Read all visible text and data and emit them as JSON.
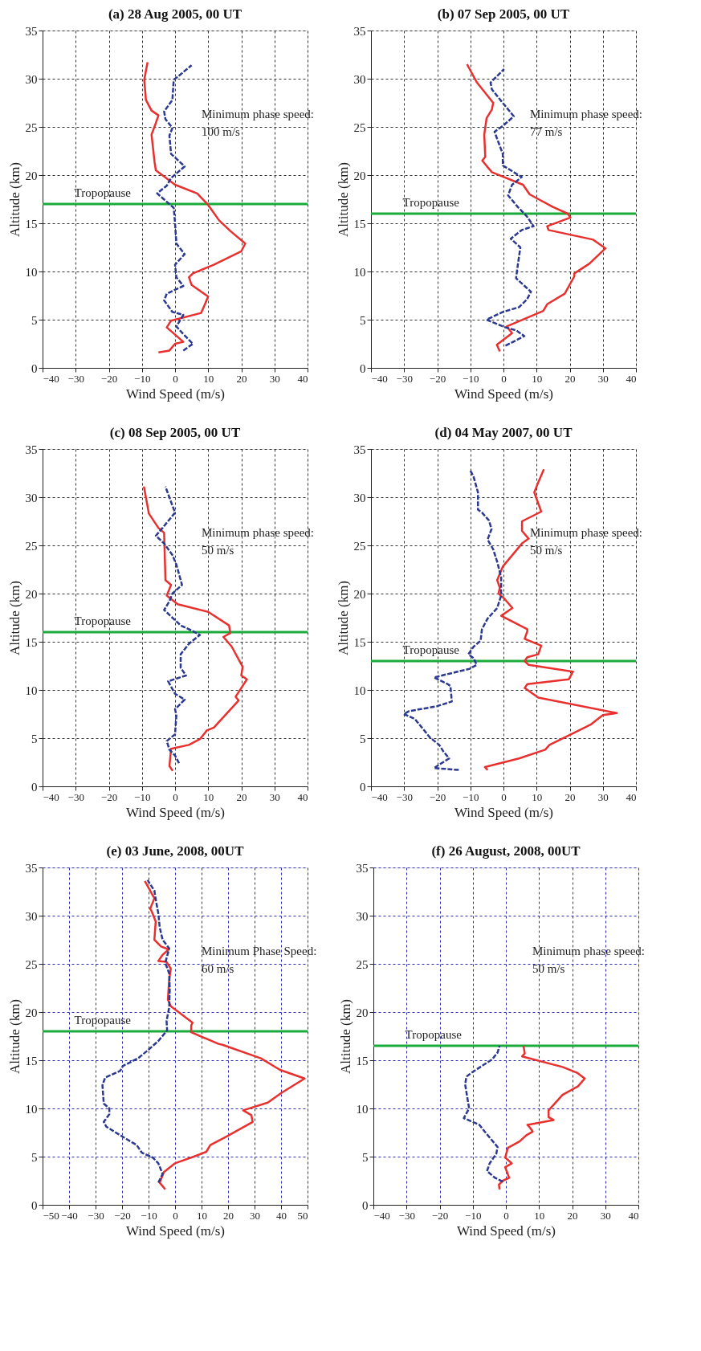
{
  "chart_data": [
    {
      "type": "line",
      "title": "(a) 28 Aug 2005, 00 UT",
      "xlabel": "Wind Speed (m/s)",
      "ylabel": "Altitude (km)",
      "xlim": [
        -40,
        40
      ],
      "xticks": [
        -40,
        -30,
        -20,
        -10,
        0,
        10,
        20,
        30,
        40
      ],
      "ylim": [
        0,
        35
      ],
      "yticks": [
        0,
        5,
        10,
        15,
        20,
        25,
        30,
        35
      ],
      "grid": true,
      "series": [
        {
          "color": "#e8312f",
          "line_style": "solid",
          "x": [
            -5,
            -1.7,
            0,
            2.5,
            -2.5,
            -1.2,
            7.9,
            10,
            5,
            4.2,
            5.4,
            11.7,
            20,
            21.2,
            16.7,
            13.3,
            10,
            6.7,
            0,
            -5.8,
            -6.2,
            -7.1,
            -5.8,
            -5,
            -7.1,
            -8.8,
            -9.3,
            -8.3
          ],
          "values": [
            1.6,
            1.8,
            2.5,
            2.7,
            4.2,
            4.9,
            5.7,
            7.4,
            8.6,
            9.4,
            9.8,
            10.7,
            12.1,
            12.9,
            14.2,
            15.3,
            16.9,
            18.1,
            19,
            20.5,
            21.4,
            24.2,
            25.4,
            26.2,
            26.7,
            27.8,
            29.9,
            31.7
          ]
        },
        {
          "color": "#2b3990",
          "line_style": "dashed",
          "x": [
            2.5,
            5.4,
            2.5,
            0.4,
            2.5,
            -0.8,
            -3.3,
            -2.5,
            2.5,
            0.4,
            0,
            2.9,
            0.4,
            0,
            -0.4,
            -5.4,
            -2.5,
            -1.2,
            2.9,
            -1.2,
            -1.7,
            -0.8,
            -2.9,
            -3.3,
            -0.8,
            -0.4,
            0.8,
            5
          ],
          "values": [
            1.8,
            2.5,
            3.5,
            4.3,
            5.5,
            5.8,
            7,
            7.7,
            8.5,
            9.4,
            10.7,
            11.8,
            12.9,
            15,
            16.6,
            18.1,
            18.9,
            19.7,
            20.9,
            22.2,
            24.1,
            24.9,
            25.8,
            26.6,
            27.8,
            29.9,
            30.2,
            31.4
          ]
        }
      ],
      "ref_lines": [
        {
          "axis": "y",
          "value": 17,
          "label": "Tropopause",
          "color": "#1aab3b"
        }
      ],
      "annotations": [
        "Minimum phase speed:\n100 m/s"
      ]
    },
    {
      "type": "line",
      "title": "(b) 07 Sep 2005, 00 UT",
      "xlabel": "Wind Speed (m/s)",
      "ylabel": "Altitude (km)",
      "xlim": [
        -40,
        40
      ],
      "xticks": [
        -40,
        -30,
        -20,
        -10,
        0,
        10,
        20,
        30,
        40
      ],
      "ylim": [
        0,
        35
      ],
      "yticks": [
        0,
        5,
        10,
        15,
        20,
        25,
        30,
        35
      ],
      "grid": true,
      "series": [
        {
          "color": "#e8312f",
          "line_style": "solid",
          "x": [
            -1.1,
            -2,
            2.6,
            1,
            12,
            13.2,
            18.5,
            21.4,
            21.4,
            25.9,
            30.8,
            27.1,
            13.6,
            13.2,
            20.2,
            19.4,
            14.9,
            7.9,
            5.9,
            -3.5,
            -6.4,
            -5.5,
            -5.8,
            -5.1,
            -3.5,
            -3.1,
            -8,
            -11
          ],
          "values": [
            1.7,
            2.4,
            3.6,
            4.3,
            5.9,
            6.6,
            7.7,
            9.5,
            9.8,
            10.8,
            12.4,
            13.3,
            14.3,
            14.7,
            15.6,
            16,
            16.7,
            18,
            19,
            20.3,
            21.5,
            21.9,
            24.2,
            25.9,
            26.8,
            27.5,
            29.6,
            31.5
          ]
        },
        {
          "color": "#2b3990",
          "line_style": "dashed",
          "x": [
            0.6,
            6.3,
            3.8,
            0.6,
            -5.1,
            -3.9,
            -0.2,
            4.7,
            7.1,
            8.3,
            3.8,
            4.3,
            5.1,
            2.2,
            5.5,
            9.1,
            7.1,
            4.3,
            1.4,
            2.6,
            5.5,
            -0.2,
            -0.2,
            -2.7,
            -0.2,
            3.1,
            -0.7,
            -3.5,
            -3.9,
            0.2
          ],
          "values": [
            2.3,
            3.3,
            3.9,
            4.2,
            5,
            5.2,
            5.8,
            6.3,
            7.1,
            7.9,
            9.3,
            10.6,
            12.5,
            13.4,
            14.3,
            14.7,
            15.7,
            16.7,
            17.9,
            19,
            19.8,
            21,
            22.2,
            24.5,
            25.1,
            26.1,
            27.7,
            28.9,
            29.6,
            31
          ]
        }
      ],
      "ref_lines": [
        {
          "axis": "y",
          "value": 16,
          "label": "Tropopause",
          "color": "#1aab3b"
        }
      ],
      "annotations": [
        "Minimum phase speed:\n77 m/s"
      ]
    },
    {
      "type": "line",
      "title": "(c) 08 Sep 2005, 00 UT",
      "xlabel": "Wind Speed (m/s)",
      "ylabel": "Altitude (km)",
      "xlim": [
        -40,
        40
      ],
      "xticks": [
        -40,
        -30,
        -20,
        -10,
        0,
        10,
        20,
        30,
        40
      ],
      "ylim": [
        0,
        35
      ],
      "yticks": [
        0,
        5,
        10,
        15,
        20,
        25,
        30,
        35
      ],
      "grid": true,
      "series": [
        {
          "color": "#e8312f",
          "line_style": "solid",
          "x": [
            -0.7,
            -1.7,
            -1.2,
            4.2,
            7.5,
            9.6,
            11.7,
            19.2,
            18.3,
            21.7,
            20,
            20.4,
            17.1,
            14.6,
            16.7,
            16.3,
            10,
            0.8,
            -2.5,
            -1.2,
            -2.9,
            -3.3,
            -5,
            -7.9,
            -9.4
          ],
          "values": [
            1.6,
            2.1,
            3.9,
            4.3,
            4.9,
            5.8,
            6.1,
            8.9,
            9.3,
            11.1,
            11.5,
            12.4,
            14.5,
            15.5,
            15.9,
            16.7,
            18.1,
            18.9,
            19.8,
            20.9,
            21.4,
            26.3,
            26.8,
            28.3,
            31.1
          ]
        },
        {
          "color": "#2b3990",
          "line_style": "dashed",
          "x": [
            1.2,
            0,
            -1.7,
            -2.5,
            0,
            0.4,
            0,
            2.9,
            0,
            -2.1,
            3.3,
            1.7,
            1.7,
            4.2,
            7.5,
            5.4,
            1.7,
            -3.3,
            -1.7,
            -0.8,
            2.1,
            0.4,
            -0.8,
            -3.3,
            -5.8,
            -3.8,
            0,
            -1.2,
            -2.9
          ],
          "values": [
            2.4,
            3.2,
            3.8,
            4.7,
            5.4,
            7.4,
            8,
            9,
            9.6,
            10.9,
            11.5,
            12.3,
            13.7,
            14.8,
            15.7,
            16.1,
            16.7,
            18.3,
            19.2,
            20,
            20.9,
            23,
            24,
            25.2,
            26,
            26.8,
            28.4,
            29.5,
            31.1
          ]
        }
      ],
      "ref_lines": [
        {
          "axis": "y",
          "value": 16,
          "label": "Tropopause",
          "color": "#1aab3b"
        }
      ],
      "annotations": [
        "Minimum phase speed:\n50 m/s"
      ]
    },
    {
      "type": "line",
      "title": "(d) 04 May 2007, 00 UT",
      "xlabel": "Wind Speed (m/s)",
      "ylabel": "Altitude (km)",
      "xlim": [
        -40,
        40
      ],
      "xticks": [
        -40,
        -30,
        -20,
        -10,
        0,
        10,
        20,
        30,
        40
      ],
      "ylim": [
        0,
        35
      ],
      "yticks": [
        0,
        5,
        10,
        15,
        20,
        25,
        30,
        35
      ],
      "grid": true,
      "series": [
        {
          "color": "#e8312f",
          "line_style": "solid",
          "x": [
            -4.8,
            -5.6,
            4.7,
            12.6,
            13.9,
            23.4,
            26.3,
            30,
            34.2,
            10.5,
            6.4,
            7.2,
            19.7,
            21,
            7.6,
            6.4,
            7.2,
            10.5,
            11.4,
            6.4,
            7.2,
            7.2,
            -0.7,
            2.7,
            0.2,
            -1.5,
            -1.1,
            -1.9,
            -0.2,
            5.6,
            7.6,
            5.6,
            5.6,
            11.4,
            9.3,
            10.1,
            12.2
          ],
          "values": [
            1.7,
            2,
            2.9,
            3.8,
            4.3,
            5.9,
            6.4,
            7.4,
            7.6,
            9.2,
            10.2,
            10.6,
            11.1,
            11.9,
            12.6,
            13,
            13.4,
            13.7,
            14.6,
            15.3,
            16.1,
            16.3,
            17.7,
            18.5,
            19.5,
            20,
            20.6,
            21.4,
            22.8,
            25.2,
            25.7,
            26.5,
            27.5,
            28.5,
            30.5,
            31.2,
            32.9
          ]
        },
        {
          "color": "#2b3990",
          "line_style": "dashed",
          "x": [
            -13.5,
            -21,
            -16.4,
            -18.1,
            -19.4,
            -22.3,
            -23.9,
            -26.8,
            -30.1,
            -28.5,
            -20.2,
            -15.6,
            -16,
            -16.8,
            -21,
            -10.2,
            -8.1,
            -9,
            -10.6,
            -9,
            -6.9,
            -6.5,
            -4.8,
            -1.9,
            -0.7,
            -0.7,
            -1.9,
            -3.1,
            -4.8,
            -3.6,
            -4.4,
            -6.5,
            -7.7,
            -7.7,
            -9,
            -10.2
          ],
          "values": [
            1.7,
            1.9,
            2.9,
            3.6,
            4.3,
            5.1,
            5.8,
            7,
            7.5,
            7.8,
            8.3,
            8.8,
            10.4,
            10.6,
            11.3,
            12.2,
            12.6,
            13.3,
            13.7,
            14.5,
            15.1,
            16.3,
            17.4,
            18.5,
            19.8,
            21.7,
            23.3,
            24.6,
            25.6,
            26.7,
            27.6,
            28.4,
            28.7,
            30.5,
            32.1,
            32.9
          ]
        }
      ],
      "ref_lines": [
        {
          "axis": "y",
          "value": 13,
          "label": "Tropopause",
          "color": "#1aab3b"
        }
      ],
      "annotations": [
        "Minimum phase speed:\n50 m/s"
      ]
    },
    {
      "type": "line",
      "title": "(e) 03 June, 2008, 00UT",
      "xlabel": "Wind Speed (m/s)",
      "ylabel": "Altitude (km)",
      "xlim": [
        -50,
        50
      ],
      "xticks": [
        -50,
        -40,
        -30,
        -20,
        -10,
        0,
        10,
        20,
        30,
        40,
        50
      ],
      "ylim": [
        0,
        35
      ],
      "yticks": [
        0,
        5,
        10,
        15,
        20,
        25,
        30,
        35
      ],
      "grid": true,
      "series": [
        {
          "color": "#e8312f",
          "line_style": "solid",
          "x": [
            -3.7,
            -5.8,
            -4.2,
            -0.1,
            7.1,
            11.8,
            13.3,
            19.5,
            29.3,
            28.8,
            25.7,
            35,
            40.1,
            48.9,
            39.6,
            32.4,
            17.9,
            16.4,
            6.1,
            6.1,
            6.6,
            -1.6,
            -2.7,
            -2.2,
            -1.6,
            -3.2,
            -6.3,
            -4.8,
            -2.4,
            -5.3,
            -7.8,
            -7.3,
            -8.9,
            -9.4,
            -7.8,
            -11.4
          ],
          "values": [
            1.6,
            2.3,
            3.4,
            4.3,
            5,
            5.5,
            6.2,
            7.1,
            8.6,
            9.3,
            9.8,
            10.6,
            11.6,
            13.1,
            14,
            15.2,
            16.6,
            16.7,
            17.9,
            18.6,
            18.9,
            20.6,
            21.3,
            23.4,
            24.5,
            25.2,
            25.3,
            25.9,
            26.5,
            26.8,
            27.5,
            29.4,
            30.5,
            30.7,
            31.8,
            33.6
          ]
        },
        {
          "color": "#2b3990",
          "line_style": "dashed",
          "x": [
            -6.3,
            -4.7,
            -6.3,
            -8.4,
            -12.5,
            -14.5,
            -21.2,
            -25.9,
            -26.9,
            -24.8,
            -24.8,
            -26.9,
            -27.4,
            -26.4,
            -20.7,
            -19.7,
            -14,
            -10.4,
            -6.3,
            -3,
            -3.2,
            -2.2,
            -2,
            -2.2,
            -3.7,
            -2.2,
            -4.7,
            -5.8,
            -6.3,
            -7.3,
            -7.8,
            -10.4
          ],
          "values": [
            2.3,
            3.2,
            4.3,
            4.9,
            5.4,
            6.2,
            7.3,
            8.1,
            8.6,
            9.4,
            10,
            10.5,
            12.4,
            13.2,
            13.9,
            14.4,
            15.2,
            16,
            17,
            18.1,
            19.1,
            20.5,
            22.4,
            24,
            25.1,
            26.6,
            27.5,
            28.8,
            30.2,
            31.7,
            32.6,
            33.7
          ]
        }
      ],
      "ref_lines": [
        {
          "axis": "y",
          "value": 18,
          "label": "Tropopause",
          "color": "#1aab3b"
        }
      ],
      "annotations": [
        "Minimum Phase Speed:\n60 m/s"
      ]
    },
    {
      "type": "line",
      "title": "(f) 26 August, 2008, 00UT",
      "xlabel": "Wind Speed (m/s)",
      "ylabel": "Altitude (km)",
      "xlim": [
        -40,
        40
      ],
      "xticks": [
        -40,
        -30,
        -20,
        -10,
        0,
        10,
        20,
        30,
        40
      ],
      "ylim": [
        0,
        35
      ],
      "yticks": [
        0,
        5,
        10,
        15,
        20,
        25,
        30,
        35
      ],
      "grid": true,
      "series": [
        {
          "color": "#e8312f",
          "line_style": "solid",
          "x": [
            -1.9,
            -2.1,
            -0.9,
            1,
            -0.2,
            1.8,
            -0.2,
            0.6,
            4.2,
            6.1,
            8.1,
            7.3,
            6.5,
            14.4,
            12.9,
            12.9,
            17.1,
            21.8,
            23.8,
            21.5,
            17.1,
            4.9,
            5.7,
            5.3
          ],
          "values": [
            1.6,
            2.1,
            2.5,
            2.8,
            3.9,
            4.3,
            4.9,
            5.9,
            6.6,
            7.2,
            7.6,
            8,
            8.3,
            8.8,
            9.1,
            9.8,
            11.4,
            12.3,
            13.1,
            13.7,
            14.3,
            15.4,
            15.7,
            16.5
          ]
        },
        {
          "color": "#2b3990",
          "line_style": "dashed",
          "x": [
            -0.9,
            -3.3,
            -5.7,
            -4.9,
            -2.9,
            -2.5,
            -6.4,
            -8,
            -12.7,
            -11.1,
            -12.3,
            -11.9,
            -10.4,
            -4.1,
            -2.5,
            -1.9
          ],
          "values": [
            2.4,
            2.8,
            3.5,
            4.3,
            5.3,
            6,
            7.6,
            8.3,
            9,
            10,
            12.5,
            13.3,
            13.7,
            15.1,
            15.8,
            16.5
          ]
        }
      ],
      "ref_lines": [
        {
          "axis": "y",
          "value": 16.5,
          "label": "Tropopause",
          "color": "#1aab3b"
        }
      ],
      "annotations": [
        "Minimum phase speed:\n50 m/s"
      ]
    }
  ]
}
